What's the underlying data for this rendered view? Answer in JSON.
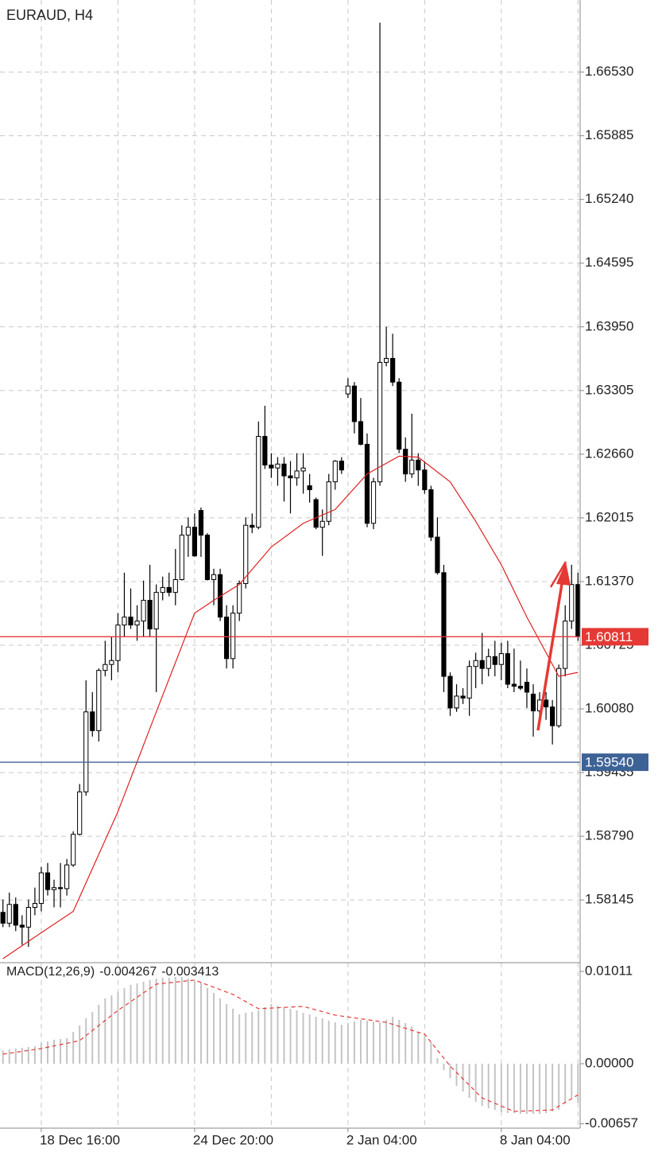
{
  "chart_data": [
    {
      "type": "candlestick",
      "title": "EURAUD, H4",
      "categories": [
        null,
        null,
        null,
        null,
        null,
        null,
        "18 Dec 16:00",
        null,
        null,
        null,
        null,
        null,
        null,
        null,
        null,
        null,
        null,
        null,
        null,
        null,
        null,
        null,
        null,
        null,
        null,
        null,
        null,
        null,
        null,
        null,
        "24 Dec 20:00",
        null,
        null,
        null,
        null,
        null,
        null,
        null,
        null,
        null,
        null,
        null,
        null,
        null,
        null,
        null,
        null,
        null,
        null,
        null,
        null,
        null,
        null,
        null,
        "2 Jan 04:00",
        null,
        null,
        null,
        null,
        null,
        null,
        null,
        null,
        null,
        null,
        null,
        null,
        null,
        null,
        null,
        null,
        null,
        null,
        null,
        null,
        null,
        null,
        null,
        "8 Jan 04:00",
        null,
        null,
        null,
        null,
        null,
        null,
        null,
        null,
        null,
        null,
        null,
        null
      ],
      "open": [
        1.5802,
        1.5791,
        1.581,
        1.5789,
        1.5787,
        1.5807,
        1.5811,
        1.5842,
        1.5825,
        1.5827,
        1.5826,
        1.585,
        1.5881,
        1.5924,
        1.6005,
        1.5986,
        1.6047,
        1.6053,
        1.6057,
        1.6093,
        1.6101,
        1.6093,
        1.6097,
        1.6118,
        1.6089,
        1.6126,
        1.6131,
        1.6126,
        1.6139,
        1.6184,
        1.6192,
        1.6209,
        1.6184,
        1.6139,
        1.6144,
        1.6101,
        1.6059,
        1.6105,
        1.6135,
        1.6194,
        1.6192,
        1.6284,
        1.6255,
        1.6252,
        1.6256,
        1.6244,
        1.6242,
        1.6249,
        1.6234,
        1.622,
        1.6192,
        1.6198,
        1.6238,
        1.6259,
        1.6327,
        1.6335,
        1.6299,
        1.6276,
        1.6196,
        1.6238,
        1.6359,
        1.6363,
        1.6339,
        1.6271,
        1.6246,
        1.626,
        1.625,
        1.623,
        1.6182,
        1.6146,
        1.6041,
        1.6009,
        1.6021,
        1.6019,
        1.6051,
        1.6057,
        1.6049,
        1.6061,
        1.6053,
        1.6064,
        1.6033,
        1.6031,
        1.6035,
        1.6023,
        1.6006,
        1.6017,
        1.601,
        1.5991,
        1.6049,
        1.6097,
        1.6134
      ],
      "high": [
        1.5815,
        1.5822,
        1.5817,
        1.5799,
        1.5815,
        1.5827,
        1.5848,
        1.5852,
        1.5835,
        1.5852,
        1.5856,
        1.5884,
        1.5932,
        1.6037,
        1.6025,
        1.6049,
        1.6077,
        1.6081,
        1.6105,
        1.6146,
        1.613,
        1.6113,
        1.6138,
        1.6154,
        1.6134,
        1.6142,
        1.6146,
        1.617,
        1.6194,
        1.6202,
        1.6206,
        1.6212,
        1.6186,
        1.615,
        1.615,
        1.6113,
        1.6113,
        1.6138,
        1.6202,
        1.6206,
        1.6299,
        1.6315,
        1.6267,
        1.6263,
        1.6263,
        1.6259,
        1.6267,
        1.6267,
        1.6246,
        1.6222,
        1.621,
        1.6246,
        1.626,
        1.6263,
        1.6343,
        1.6339,
        1.6323,
        1.6287,
        1.6242,
        1.6703,
        1.6395,
        1.6388,
        1.6343,
        1.6283,
        1.6307,
        1.6267,
        1.6259,
        1.6234,
        1.6202,
        1.6154,
        1.6045,
        1.6033,
        1.6029,
        1.6057,
        1.6065,
        1.6085,
        1.6069,
        1.6077,
        1.6075,
        1.6077,
        1.6069,
        1.6057,
        1.6049,
        1.6033,
        1.6025,
        1.6025,
        1.6017,
        1.6053,
        1.6113,
        1.6154,
        1.6146
      ],
      "low": [
        1.5787,
        1.5787,
        1.5783,
        1.5769,
        1.5767,
        1.5799,
        1.5803,
        1.5819,
        1.5807,
        1.5807,
        1.5819,
        1.5848,
        1.588,
        1.592,
        1.598,
        1.5975,
        1.6041,
        1.6037,
        1.6045,
        1.6081,
        1.6089,
        1.6077,
        1.6081,
        1.6081,
        1.6025,
        1.6118,
        1.6122,
        1.6113,
        1.6138,
        1.6162,
        1.6162,
        1.6162,
        1.6138,
        1.6113,
        1.6097,
        1.6049,
        1.6049,
        1.6097,
        1.613,
        1.6186,
        1.619,
        1.6251,
        1.6242,
        1.6234,
        1.6218,
        1.6206,
        1.6234,
        1.6226,
        1.6217,
        1.619,
        1.6163,
        1.6194,
        1.623,
        1.6246,
        1.6323,
        1.6287,
        1.6275,
        1.6192,
        1.619,
        1.6234,
        1.6355,
        1.6335,
        1.6267,
        1.6238,
        1.6242,
        1.6234,
        1.6226,
        1.6178,
        1.6144,
        1.6025,
        1.6001,
        1.6005,
        1.6013,
        1.6001,
        1.6029,
        1.6033,
        1.6041,
        1.6041,
        1.6037,
        1.6029,
        1.6025,
        1.6027,
        1.6009,
        1.598,
        1.5997,
        1.5997,
        1.5972,
        1.5989,
        1.6041,
        1.6089,
        1.6077
      ],
      "close": [
        1.5791,
        1.581,
        1.5789,
        1.5787,
        1.5807,
        1.5811,
        1.5842,
        1.5825,
        1.5827,
        1.5826,
        1.585,
        1.5881,
        1.5924,
        1.6005,
        1.5986,
        1.6047,
        1.6053,
        1.6057,
        1.6093,
        1.6101,
        1.6093,
        1.6097,
        1.6118,
        1.6089,
        1.6126,
        1.6131,
        1.6126,
        1.6139,
        1.6184,
        1.6192,
        1.6163,
        1.6184,
        1.6139,
        1.6144,
        1.6101,
        1.6059,
        1.6105,
        1.6135,
        1.6194,
        1.6192,
        1.6284,
        1.6255,
        1.6252,
        1.6256,
        1.6244,
        1.6242,
        1.6249,
        1.6252,
        1.623,
        1.6192,
        1.6198,
        1.6238,
        1.6259,
        1.625,
        1.6335,
        1.6299,
        1.6276,
        1.6196,
        1.6238,
        1.6359,
        1.6363,
        1.6339,
        1.6271,
        1.6246,
        1.626,
        1.625,
        1.623,
        1.6182,
        1.6146,
        1.6041,
        1.6009,
        1.6021,
        1.6019,
        1.6051,
        1.6057,
        1.6049,
        1.6061,
        1.6053,
        1.6064,
        1.6033,
        1.6031,
        1.6029,
        1.6025,
        1.6006,
        1.6017,
        1.601,
        1.5991,
        1.6049,
        1.6097,
        1.6134,
        1.6081
      ],
      "up_color": "#ffffff",
      "down_color": "#000000",
      "ma": {
        "color": "#e02020",
        "x": [
          0,
          5,
          11,
          18,
          24,
          30,
          33,
          37,
          42,
          47,
          52,
          57,
          62,
          65,
          70,
          74,
          78,
          82,
          87,
          90
        ],
        "values": [
          1.5755,
          1.5777,
          1.5803,
          1.5904,
          1.6005,
          1.6105,
          1.6118,
          1.6134,
          1.6172,
          1.6196,
          1.621,
          1.6246,
          1.6264,
          1.6263,
          1.6238,
          1.6198,
          1.6154,
          1.6101,
          1.6041,
          1.6045
        ]
      },
      "price_lines": [
        {
          "value": 1.60811,
          "color": "#e53935"
        },
        {
          "value": 1.5954,
          "label": "1.59540",
          "color": "#3d6396"
        }
      ],
      "ylim": [
        1.5751,
        1.6726
      ],
      "yticks": [
        1.58145,
        {
          "value": 1.5879,
          "label": "1.58790"
        },
        1.59435,
        {
          "value": 1.6008,
          "label": "1.60080"
        },
        1.60725,
        {
          "value": 1.6137,
          "label": "1.61370"
        },
        1.62015,
        {
          "value": 1.6266,
          "label": "1.62660"
        },
        1.63305,
        {
          "value": 1.6395,
          "label": "1.63950"
        },
        1.64595,
        {
          "value": 1.6524,
          "label": "1.65240"
        },
        1.65885,
        {
          "value": 1.6653,
          "label": "1.66530"
        }
      ],
      "grid": true
    },
    {
      "type": "macd",
      "label": "MACD(12,26,9)",
      "main_value": -0.004267,
      "signal_value": -0.003413,
      "color": "#c4c4c4",
      "histogram": [
        0.00148,
        0.00157,
        0.00166,
        0.00174,
        0.00183,
        0.00192,
        0.00227,
        0.00244,
        0.00262,
        0.0027,
        0.00279,
        0.00349,
        0.00419,
        0.00497,
        0.00567,
        0.00645,
        0.00715,
        0.0075,
        0.00785,
        0.00828,
        0.00863,
        0.00881,
        0.00898,
        0.00916,
        0.00933,
        0.00942,
        0.00942,
        0.0095,
        0.0095,
        0.00933,
        0.00907,
        0.00889,
        0.00828,
        0.00776,
        0.00715,
        0.00654,
        0.00602,
        0.00541,
        0.00558,
        0.00567,
        0.00584,
        0.00619,
        0.00654,
        0.00637,
        0.00619,
        0.00602,
        0.00584,
        0.00558,
        0.00541,
        0.00514,
        0.00497,
        0.00471,
        0.00453,
        0.00427,
        0.00445,
        0.00462,
        0.0048,
        0.00471,
        0.00462,
        0.00453,
        0.0048,
        0.00514,
        0.0048,
        0.00445,
        0.0041,
        0.00349,
        0.00296,
        0.00235,
        0.00061,
        -0.0007,
        -0.00157,
        -0.00244,
        -0.00305,
        -0.00375,
        -0.00419,
        -0.00462,
        -0.00488,
        -0.00506,
        -0.00532,
        -0.00541,
        -0.00541,
        -0.00549,
        -0.00549,
        -0.00549,
        -0.00549,
        -0.00541,
        -0.00523,
        -0.00506,
        -0.00436,
        -0.00375,
        -0.00427
      ],
      "signal": {
        "color": "#e53935",
        "x": [
          0,
          6,
          12,
          18,
          24,
          30,
          36,
          40,
          47,
          52,
          60,
          66,
          70,
          75,
          80,
          86,
          90
        ],
        "values": [
          0.00105,
          0.00166,
          0.00253,
          0.00584,
          0.00872,
          0.00916,
          0.00759,
          0.00602,
          0.00628,
          0.00532,
          0.00453,
          0.00323,
          -0.00026,
          -0.00375,
          -0.00523,
          -0.00506,
          -0.00341
        ]
      },
      "ylim": [
        -0.00706,
        0.01107
      ],
      "yticks": [
        0.01011,
        {
          "value": 0,
          "label": "0.00000"
        },
        -0.00657
      ]
    }
  ]
}
